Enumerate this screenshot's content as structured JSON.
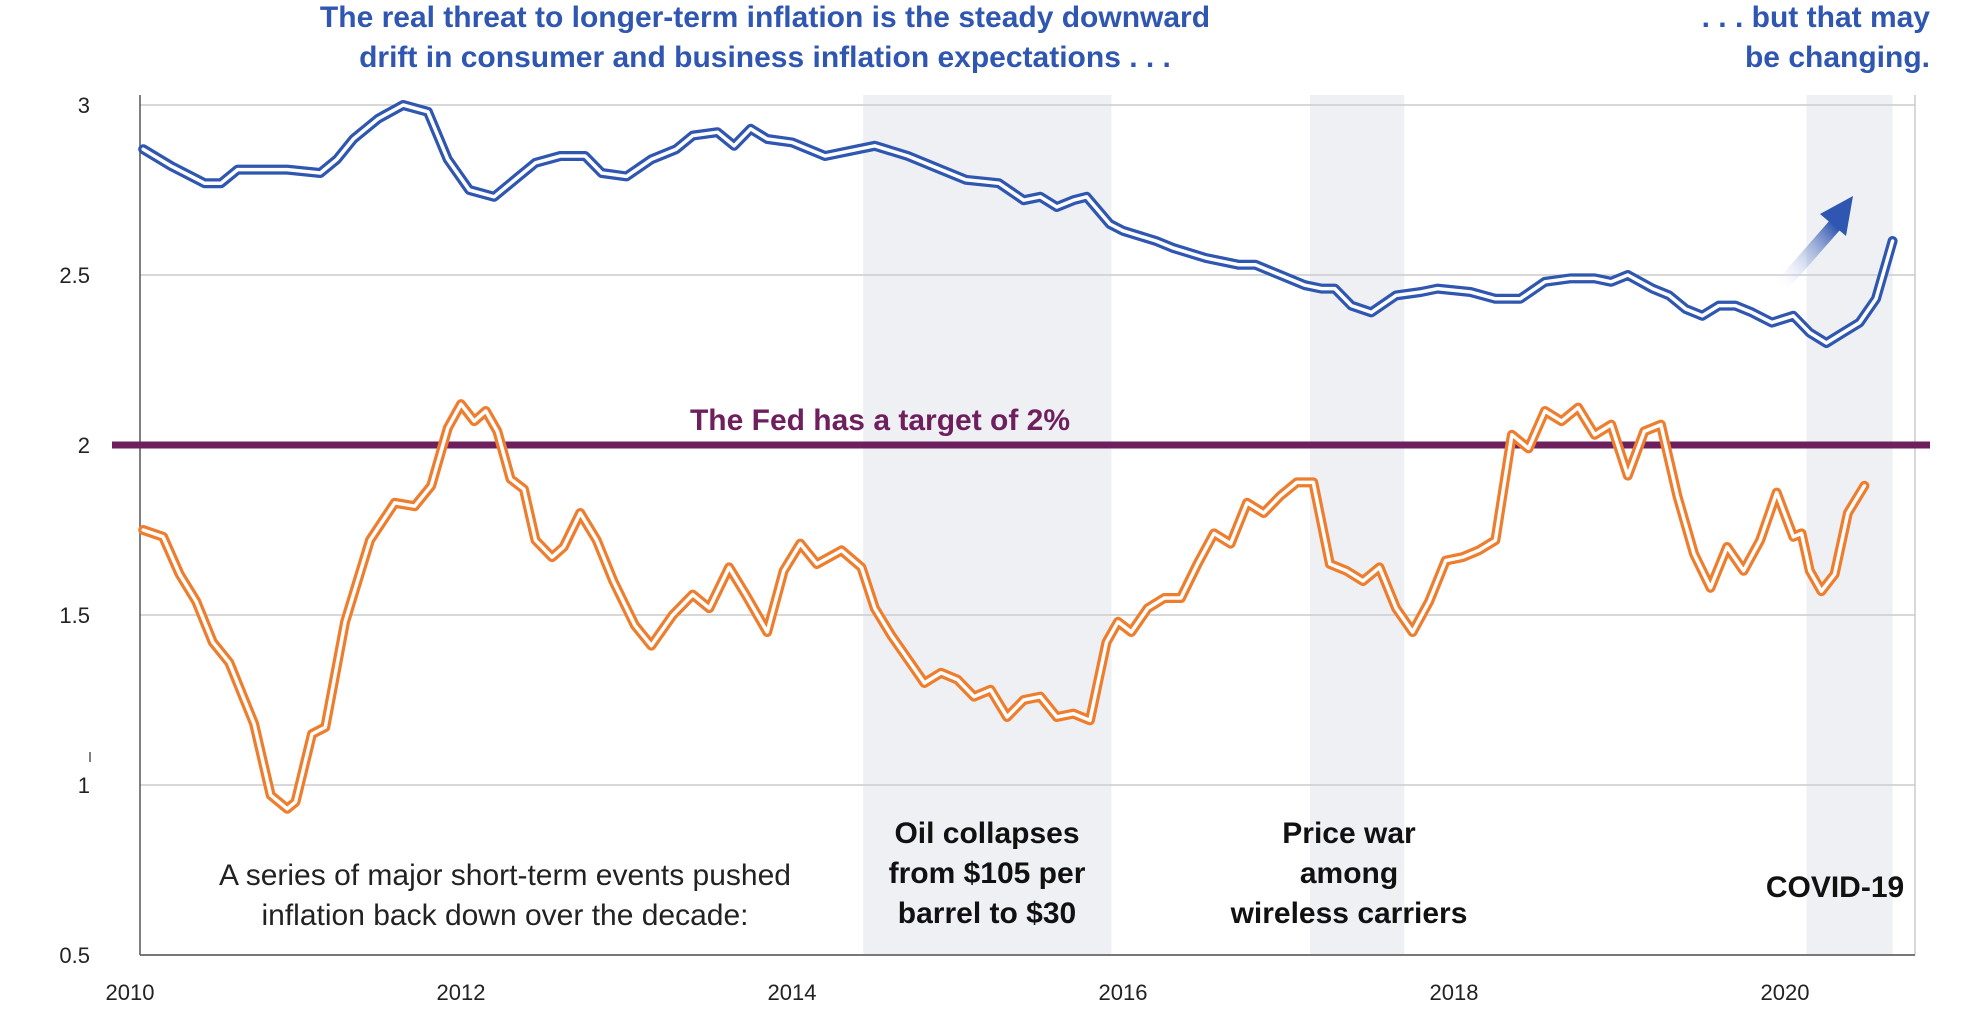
{
  "chart_data": {
    "type": "line",
    "annotations": {
      "title_left_lines": [
        "The real threat to longer-term inflation is the steady downward",
        "drift in consumer and business inflation expectations . . ."
      ],
      "title_right_lines": [
        ". . . but that may",
        "be changing."
      ],
      "fed_target_label": "The Fed has a target of 2%",
      "intro_lines": [
        "A series of major short-term events pushed",
        "inflation back down over the decade:"
      ],
      "events": [
        {
          "lines": [
            "Oil collapses",
            "from $105 per",
            "barrel to $30"
          ],
          "x_start": 2014.43,
          "x_end": 2015.93
        },
        {
          "lines": [
            "Price war",
            "among",
            "wireless carriers"
          ],
          "x_start": 2017.13,
          "x_end": 2017.7
        },
        {
          "lines": [
            "COVID-19"
          ],
          "x_start": 2020.13,
          "x_end": 2020.65
        }
      ]
    },
    "x_ticks": [
      {
        "value": 2010,
        "label": "2010"
      },
      {
        "value": 2012,
        "label": "2012"
      },
      {
        "value": 2014,
        "label": "2014"
      },
      {
        "value": 2016,
        "label": "2016"
      },
      {
        "value": 2018,
        "label": "2018"
      },
      {
        "value": 2020,
        "label": "2020"
      }
    ],
    "y_ticks": [
      {
        "value": 3,
        "label": "3"
      },
      {
        "value": 2.5,
        "label": "2.5"
      },
      {
        "value": 2,
        "label": "2"
      },
      {
        "value": 1.5,
        "label": "1.5"
      },
      {
        "value": 1,
        "label": "1"
      },
      {
        "value": 0.5,
        "label": "0.5"
      }
    ],
    "xlim": [
      2010,
      2021.2
    ],
    "ylim": [
      0.5,
      3.05
    ],
    "grid": true,
    "reference_line": {
      "y": 2.0
    },
    "colors": {
      "expectations": "#2f56b0",
      "inflation": "#ee7d2e",
      "fed": "#6e1f5e",
      "shade": "#eef0f3",
      "grid": "#cccccc",
      "title": "#2f56b0"
    },
    "series": [
      {
        "id": "expectations",
        "x": [
          2010.08,
          2010.25,
          2010.45,
          2010.55,
          2010.65,
          2010.95,
          2011.15,
          2011.25,
          2011.35,
          2011.5,
          2011.65,
          2011.8,
          2011.92,
          2012.05,
          2012.2,
          2012.35,
          2012.45,
          2012.6,
          2012.75,
          2012.85,
          2013.0,
          2013.15,
          2013.3,
          2013.4,
          2013.55,
          2013.65,
          2013.75,
          2013.85,
          2014.0,
          2014.2,
          2014.4,
          2014.5,
          2014.7,
          2014.9,
          2015.05,
          2015.25,
          2015.4,
          2015.5,
          2015.6,
          2015.7,
          2015.78,
          2015.85,
          2015.92,
          2016.0,
          2016.2,
          2016.3,
          2016.5,
          2016.7,
          2016.8,
          2016.95,
          2017.1,
          2017.2,
          2017.28,
          2017.38,
          2017.5,
          2017.65,
          2017.8,
          2017.9,
          2018.1,
          2018.25,
          2018.4,
          2018.55,
          2018.7,
          2018.85,
          2018.95,
          2019.05,
          2019.2,
          2019.3,
          2019.4,
          2019.5,
          2019.6,
          2019.7,
          2019.8,
          2019.92,
          2020.05,
          2020.15,
          2020.25,
          2020.35,
          2020.45,
          2020.55,
          2020.65
        ],
        "values": [
          2.87,
          2.82,
          2.77,
          2.77,
          2.81,
          2.81,
          2.8,
          2.84,
          2.9,
          2.96,
          3.0,
          2.98,
          2.84,
          2.75,
          2.73,
          2.79,
          2.83,
          2.85,
          2.85,
          2.8,
          2.79,
          2.84,
          2.87,
          2.91,
          2.92,
          2.88,
          2.93,
          2.9,
          2.89,
          2.85,
          2.87,
          2.88,
          2.85,
          2.81,
          2.78,
          2.77,
          2.72,
          2.73,
          2.7,
          2.72,
          2.73,
          2.69,
          2.65,
          2.63,
          2.6,
          2.58,
          2.55,
          2.53,
          2.53,
          2.5,
          2.47,
          2.46,
          2.46,
          2.41,
          2.39,
          2.44,
          2.45,
          2.46,
          2.45,
          2.43,
          2.43,
          2.48,
          2.49,
          2.49,
          2.48,
          2.5,
          2.46,
          2.44,
          2.4,
          2.38,
          2.41,
          2.41,
          2.39,
          2.36,
          2.38,
          2.33,
          2.3,
          2.33,
          2.36,
          2.43,
          2.6
        ]
      },
      {
        "id": "inflation",
        "x": [
          2010.08,
          2010.2,
          2010.3,
          2010.4,
          2010.5,
          2010.6,
          2010.75,
          2010.85,
          2010.95,
          2011.0,
          2011.1,
          2011.18,
          2011.3,
          2011.45,
          2011.6,
          2011.72,
          2011.82,
          2011.92,
          2012.0,
          2012.08,
          2012.15,
          2012.22,
          2012.3,
          2012.38,
          2012.45,
          2012.55,
          2012.62,
          2012.72,
          2012.82,
          2012.92,
          2013.05,
          2013.15,
          2013.28,
          2013.4,
          2013.5,
          2013.62,
          2013.72,
          2013.85,
          2013.95,
          2014.05,
          2014.15,
          2014.3,
          2014.42,
          2014.5,
          2014.6,
          2014.7,
          2014.8,
          2014.9,
          2015.0,
          2015.1,
          2015.2,
          2015.3,
          2015.4,
          2015.5,
          2015.6,
          2015.7,
          2015.8,
          2015.9,
          2015.97,
          2016.05,
          2016.15,
          2016.25,
          2016.35,
          2016.45,
          2016.55,
          2016.65,
          2016.75,
          2016.85,
          2016.95,
          2017.05,
          2017.15,
          2017.25,
          2017.35,
          2017.45,
          2017.55,
          2017.65,
          2017.75,
          2017.85,
          2017.95,
          2018.05,
          2018.15,
          2018.25,
          2018.35,
          2018.45,
          2018.55,
          2018.65,
          2018.75,
          2018.85,
          2018.95,
          2019.05,
          2019.15,
          2019.25,
          2019.35,
          2019.45,
          2019.55,
          2019.65,
          2019.75,
          2019.85,
          2019.95,
          2020.05,
          2020.1,
          2020.15,
          2020.22,
          2020.3,
          2020.38,
          2020.48
        ],
        "values": [
          1.75,
          1.73,
          1.62,
          1.54,
          1.42,
          1.36,
          1.18,
          0.97,
          0.93,
          0.95,
          1.15,
          1.17,
          1.48,
          1.72,
          1.83,
          1.82,
          1.88,
          2.05,
          2.12,
          2.07,
          2.1,
          2.04,
          1.9,
          1.87,
          1.72,
          1.67,
          1.7,
          1.8,
          1.72,
          1.6,
          1.47,
          1.41,
          1.5,
          1.56,
          1.52,
          1.64,
          1.56,
          1.45,
          1.63,
          1.71,
          1.65,
          1.69,
          1.64,
          1.52,
          1.44,
          1.37,
          1.3,
          1.33,
          1.31,
          1.26,
          1.28,
          1.2,
          1.25,
          1.26,
          1.2,
          1.21,
          1.19,
          1.42,
          1.48,
          1.45,
          1.52,
          1.55,
          1.55,
          1.65,
          1.74,
          1.71,
          1.83,
          1.8,
          1.85,
          1.89,
          1.89,
          1.65,
          1.63,
          1.6,
          1.64,
          1.52,
          1.45,
          1.54,
          1.66,
          1.67,
          1.69,
          1.72,
          2.03,
          1.99,
          2.1,
          2.07,
          2.11,
          2.03,
          2.06,
          1.91,
          2.04,
          2.06,
          1.85,
          1.68,
          1.58,
          1.7,
          1.63,
          1.72,
          1.86,
          1.73,
          1.74,
          1.63,
          1.57,
          1.62,
          1.8,
          1.88
        ]
      }
    ]
  }
}
